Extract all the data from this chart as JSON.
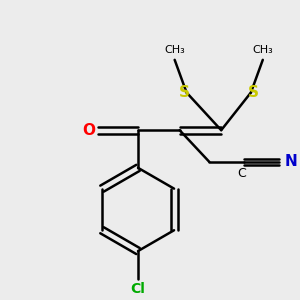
{
  "bg_color": "#ececec",
  "bond_color": "#000000",
  "bond_width": 1.8,
  "colors": {
    "S": "#c8c800",
    "O": "#ff0000",
    "N": "#0000cc",
    "Cl": "#00aa00",
    "C": "#000000"
  },
  "figsize": [
    3.0,
    3.0
  ],
  "dpi": 100
}
